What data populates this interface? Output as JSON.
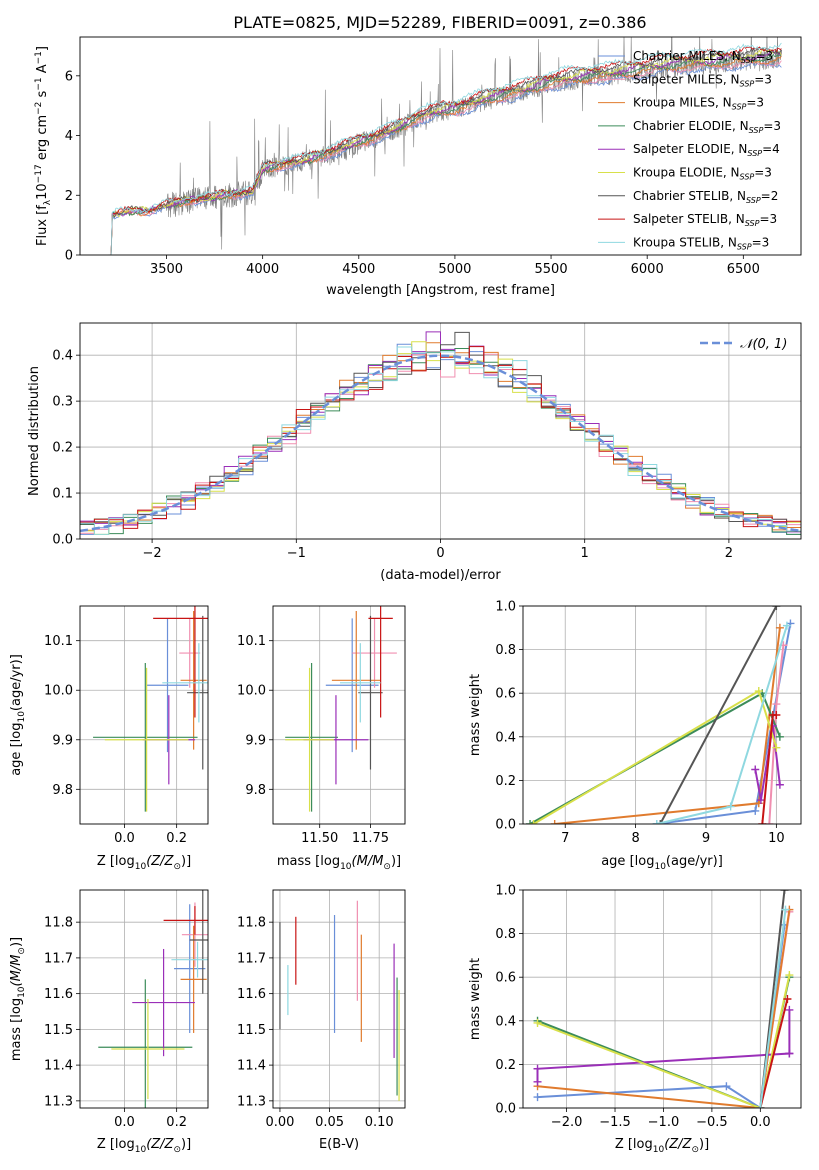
{
  "figure": {
    "title": "PLATE=0825, MJD=52289, FIBERID=0091, z=0.386"
  },
  "chart_data": [
    {
      "id": "spectrum",
      "type": "line",
      "xlabel": "wavelength [Angstrom, rest frame]",
      "ylabel": "Flux [f",
      "ylabel_parts": [
        "Flux [f",
        "λ",
        "10",
        "−17",
        " erg cm",
        "−2",
        " s",
        "−1",
        " A",
        "−1",
        "]"
      ],
      "xlim": [
        3050,
        6800
      ],
      "ylim": [
        0,
        7.3
      ],
      "xticks": [
        3500,
        4000,
        4500,
        5000,
        5500,
        6000,
        6500
      ],
      "yticks": [
        0,
        2,
        4,
        6
      ],
      "grid": false,
      "legend_position": "right",
      "legend": [
        {
          "name": "Chabrier MILES, N",
          "sub": "SSP",
          "suffix": "=3",
          "color": "#6a8fd8"
        },
        {
          "name": "Salpeter MILES, N",
          "sub": "SSP",
          "suffix": "=3",
          "color": "#f08fb0"
        },
        {
          "name": "Kroupa MILES, N",
          "sub": "SSP",
          "suffix": "=3",
          "color": "#e07b2e"
        },
        {
          "name": "Chabrier ELODIE, N",
          "sub": "SSP",
          "suffix": "=3",
          "color": "#3c8c5a"
        },
        {
          "name": "Salpeter ELODIE, N",
          "sub": "SSP",
          "suffix": "=4",
          "color": "#9a2fb8"
        },
        {
          "name": "Kroupa ELODIE, N",
          "sub": "SSP",
          "suffix": "=3",
          "color": "#d8e04a"
        },
        {
          "name": "Chabrier STELIB, N",
          "sub": "SSP",
          "suffix": "=2",
          "color": "#555555"
        },
        {
          "name": "Salpeter STELIB, N",
          "sub": "SSP",
          "suffix": "=3",
          "color": "#c81414"
        },
        {
          "name": "Kroupa STELIB, N",
          "sub": "SSP",
          "suffix": "=3",
          "color": "#8fd8e0"
        }
      ],
      "data_color": "#808080",
      "model_x": [
        3200,
        3210,
        3300,
        3400,
        3500,
        3600,
        3700,
        3800,
        3900,
        3950,
        4000,
        4100,
        4200,
        4300,
        4400,
        4500,
        4600,
        4700,
        4800,
        4900,
        5000,
        5100,
        5200,
        5300,
        5400,
        5500,
        5600,
        5700,
        5800,
        5900,
        6000,
        6100,
        6200,
        6300,
        6400,
        6500,
        6600,
        6700
      ],
      "model_y": [
        0,
        1.3,
        1.45,
        1.45,
        1.65,
        1.8,
        1.85,
        2.0,
        2.05,
        2.1,
        2.85,
        3.0,
        3.1,
        3.3,
        3.5,
        3.75,
        3.95,
        4.2,
        4.55,
        4.75,
        4.85,
        5.05,
        5.25,
        5.4,
        5.55,
        5.75,
        5.85,
        5.95,
        6.0,
        6.1,
        6.2,
        6.3,
        6.35,
        6.4,
        6.45,
        6.5,
        6.55,
        6.6
      ]
    },
    {
      "id": "residual-histogram",
      "type": "histogram",
      "xlabel": "(data-model)/error",
      "ylabel": "Normed distribution",
      "xlim": [
        -2.5,
        2.5
      ],
      "ylim": [
        0,
        0.47
      ],
      "xticks": [
        -2,
        -1,
        0,
        1,
        2
      ],
      "yticks": [
        0.0,
        0.1,
        0.2,
        0.3,
        0.4
      ],
      "grid": true,
      "legend_position": "top-right",
      "legend_label": "𝒩(0, 1)",
      "curve_color": "#6a8fd8",
      "bin_width": 0.1
    },
    {
      "id": "age-vs-Z",
      "type": "errorbar",
      "xlabel_parts": [
        "Z [log",
        "10",
        "(Z/Z",
        "⊙",
        ")]"
      ],
      "ylabel_parts": [
        "age  [log",
        "10",
        "(age/yr)]"
      ],
      "xlim": [
        -0.17,
        0.32
      ],
      "ylim": [
        9.73,
        10.17
      ],
      "xticks": [
        0.0,
        0.2
      ],
      "yticks": [
        9.8,
        9.9,
        10.0,
        10.1
      ],
      "grid": true,
      "points": [
        {
          "x": 0.165,
          "xerr": 0.08,
          "y": 10.01,
          "yerr": 0.135,
          "color": "#6a8fd8"
        },
        {
          "x": 0.25,
          "xerr": 0.04,
          "y": 10.075,
          "yerr": 0.07,
          "color": "#f08fb0"
        },
        {
          "x": 0.265,
          "xerr": 0.05,
          "y": 10.02,
          "yerr": 0.14,
          "color": "#e07b2e"
        },
        {
          "x": 0.08,
          "xerr": 0.2,
          "y": 9.905,
          "yerr": 0.15,
          "color": "#3c8c5a"
        },
        {
          "x": 0.17,
          "xerr": 0.1,
          "y": 9.9,
          "yerr": 0.09,
          "color": "#9a2fb8"
        },
        {
          "x": 0.085,
          "xerr": 0.16,
          "y": 9.9,
          "yerr": 0.145,
          "color": "#d8e04a"
        },
        {
          "x": 0.3,
          "xerr": 0.06,
          "y": 9.995,
          "yerr": 0.155,
          "color": "#555555"
        },
        {
          "x": 0.27,
          "xerr": 0.16,
          "y": 10.145,
          "yerr": 0.2,
          "color": "#c81414"
        },
        {
          "x": 0.285,
          "xerr": 0.14,
          "y": 10.015,
          "yerr": 0.08,
          "color": "#8fd8e0"
        }
      ]
    },
    {
      "id": "age-vs-mass",
      "type": "errorbar",
      "xlabel_parts": [
        "mass [log",
        "10",
        "(M/M",
        "⊙",
        ")]"
      ],
      "ylabel": "",
      "xlim": [
        11.27,
        11.92
      ],
      "ylim": [
        9.73,
        10.17
      ],
      "xticks": [
        11.5,
        11.75
      ],
      "yticks": [
        9.8,
        9.9,
        10.0,
        10.1
      ],
      "grid": true,
      "points": [
        {
          "x": 11.66,
          "xerr": 0.13,
          "y": 10.01,
          "yerr": 0.135,
          "color": "#6a8fd8"
        },
        {
          "x": 11.77,
          "xerr": 0.11,
          "y": 10.075,
          "yerr": 0.07,
          "color": "#f08fb0"
        },
        {
          "x": 11.68,
          "xerr": 0.12,
          "y": 10.02,
          "yerr": 0.14,
          "color": "#e07b2e"
        },
        {
          "x": 11.46,
          "xerr": 0.13,
          "y": 9.905,
          "yerr": 0.15,
          "color": "#3c8c5a"
        },
        {
          "x": 11.58,
          "xerr": 0.16,
          "y": 9.9,
          "yerr": 0.09,
          "color": "#9a2fb8"
        },
        {
          "x": 11.45,
          "xerr": 0.12,
          "y": 9.9,
          "yerr": 0.145,
          "color": "#d8e04a"
        },
        {
          "x": 11.75,
          "xerr": 0.06,
          "y": 9.995,
          "yerr": 0.155,
          "color": "#555555"
        },
        {
          "x": 11.8,
          "xerr": 0.06,
          "y": 10.145,
          "yerr": 0.2,
          "color": "#c81414"
        },
        {
          "x": 11.7,
          "xerr": 0.1,
          "y": 10.015,
          "yerr": 0.08,
          "color": "#8fd8e0"
        }
      ]
    },
    {
      "id": "weight-vs-age",
      "type": "line",
      "xlabel_parts": [
        "age  [log",
        "10",
        "(age/yr)]"
      ],
      "ylabel": "mass weight",
      "xlim": [
        6.4,
        10.35
      ],
      "ylim": [
        0,
        1.0
      ],
      "xticks": [
        7,
        8,
        9,
        10
      ],
      "yticks": [
        0.0,
        0.2,
        0.4,
        0.6,
        0.8,
        1.0
      ],
      "grid": true,
      "series": [
        {
          "x": [
            8.3,
            9.7,
            10.2
          ],
          "y": [
            0.0,
            0.06,
            0.92
          ],
          "color": "#6a8fd8"
        },
        {
          "x": [
            9.9,
            10.0,
            10.1
          ],
          "y": [
            0.0,
            0.55,
            0.82
          ],
          "color": "#f08fb0"
        },
        {
          "x": [
            6.85,
            9.75,
            10.05
          ],
          "y": [
            0.0,
            0.095,
            0.9
          ],
          "color": "#e07b2e"
        },
        {
          "x": [
            6.5,
            9.8,
            10.05
          ],
          "y": [
            0.0,
            0.6,
            0.4
          ],
          "color": "#3c8c5a"
        },
        {
          "x": [
            9.7,
            9.78,
            9.95,
            10.05
          ],
          "y": [
            0.25,
            0.11,
            0.45,
            0.18
          ],
          "color": "#9a2fb8"
        },
        {
          "x": [
            6.55,
            9.75,
            10.0
          ],
          "y": [
            0.0,
            0.61,
            0.35
          ],
          "color": "#d8e04a"
        },
        {
          "x": [
            8.35,
            10.0
          ],
          "y": [
            0.0,
            1.0
          ],
          "color": "#555555"
        },
        {
          "x": [
            9.8,
            9.95,
            10.0
          ],
          "y": [
            0.0,
            0.5,
            0.5
          ],
          "color": "#c81414"
        },
        {
          "x": [
            8.3,
            9.35,
            10.15
          ],
          "y": [
            0.0,
            0.08,
            0.91
          ],
          "color": "#8fd8e0"
        }
      ]
    },
    {
      "id": "mass-vs-Z",
      "type": "errorbar",
      "xlabel_parts": [
        "Z [log",
        "10",
        "(Z/Z",
        "⊙",
        ")]"
      ],
      "ylabel_parts": [
        "mass [log",
        "10",
        "(M/M",
        "⊙",
        ")]"
      ],
      "xlim": [
        -0.17,
        0.32
      ],
      "ylim": [
        11.28,
        11.89
      ],
      "xticks": [
        0.0,
        0.2
      ],
      "yticks": [
        11.3,
        11.4,
        11.5,
        11.6,
        11.7,
        11.8
      ],
      "grid": true,
      "points": [
        {
          "x": 0.25,
          "xerr": 0.06,
          "y": 11.67,
          "yerr": 0.18,
          "color": "#6a8fd8"
        },
        {
          "x": 0.27,
          "xerr": 0.05,
          "y": 11.765,
          "yerr": 0.09,
          "color": "#f08fb0"
        },
        {
          "x": 0.265,
          "xerr": 0.05,
          "y": 11.64,
          "yerr": 0.15,
          "color": "#e07b2e"
        },
        {
          "x": 0.08,
          "xerr": 0.18,
          "y": 11.45,
          "yerr": 0.19,
          "color": "#3c8c5a"
        },
        {
          "x": 0.15,
          "xerr": 0.12,
          "y": 11.575,
          "yerr": 0.15,
          "color": "#9a2fb8"
        },
        {
          "x": 0.09,
          "xerr": 0.14,
          "y": 11.445,
          "yerr": 0.14,
          "color": "#d8e04a"
        },
        {
          "x": 0.3,
          "xerr": 0.05,
          "y": 11.75,
          "yerr": 0.15,
          "color": "#555555"
        },
        {
          "x": 0.27,
          "xerr": 0.12,
          "y": 11.805,
          "yerr": 0.04,
          "color": "#c81414"
        },
        {
          "x": 0.28,
          "xerr": 0.1,
          "y": 11.695,
          "yerr": 0.05,
          "color": "#8fd8e0"
        }
      ]
    },
    {
      "id": "mass-vs-EBV",
      "type": "errorbar",
      "xlabel": "E(B-V)",
      "ylabel": "",
      "xlim": [
        -0.007,
        0.126
      ],
      "ylim": [
        11.28,
        11.89
      ],
      "xticks": [
        0.0,
        0.05,
        0.1
      ],
      "yticks": [
        11.3,
        11.4,
        11.5,
        11.6,
        11.7,
        11.8
      ],
      "grid": true,
      "points": [
        {
          "x": 0.055,
          "xerr": 0.0,
          "y": 11.655,
          "yerr": 0.165,
          "color": "#6a8fd8"
        },
        {
          "x": 0.078,
          "xerr": 0.0,
          "y": 11.72,
          "yerr": 0.14,
          "color": "#f08fb0"
        },
        {
          "x": 0.082,
          "xerr": 0.0,
          "y": 11.615,
          "yerr": 0.15,
          "color": "#e07b2e"
        },
        {
          "x": 0.118,
          "xerr": 0.0,
          "y": 11.48,
          "yerr": 0.165,
          "color": "#3c8c5a"
        },
        {
          "x": 0.115,
          "xerr": 0.0,
          "y": 11.58,
          "yerr": 0.16,
          "color": "#9a2fb8"
        },
        {
          "x": 0.12,
          "xerr": 0.0,
          "y": 11.455,
          "yerr": 0.155,
          "color": "#d8e04a"
        },
        {
          "x": 0.0,
          "xerr": 0.0,
          "y": 11.65,
          "yerr": 0.15,
          "color": "#555555"
        },
        {
          "x": 0.016,
          "xerr": 0.0,
          "y": 11.72,
          "yerr": 0.095,
          "color": "#c81414"
        },
        {
          "x": 0.008,
          "xerr": 0.0,
          "y": 11.61,
          "yerr": 0.07,
          "color": "#8fd8e0"
        }
      ]
    },
    {
      "id": "weight-vs-Z",
      "type": "line",
      "xlabel_parts": [
        "Z [log",
        "10",
        "(Z/Z",
        "⊙",
        ")]"
      ],
      "ylabel": "mass weight",
      "xlim": [
        -2.45,
        0.42
      ],
      "ylim": [
        0,
        1.0
      ],
      "xticks": [
        -2.0,
        -1.5,
        -1.0,
        -0.5,
        0.0
      ],
      "yticks": [
        0.0,
        0.2,
        0.4,
        0.6,
        0.8,
        1.0
      ],
      "grid": true,
      "series": [
        {
          "x": [
            -2.3,
            -0.35,
            0.0,
            0.25
          ],
          "y": [
            0.05,
            0.1,
            0.0,
            0.84
          ],
          "color": "#6a8fd8"
        },
        {
          "x": [
            0.0,
            0.3
          ],
          "y": [
            0.0,
            0.9
          ],
          "color": "#f08fb0"
        },
        {
          "x": [
            -2.3,
            0.0,
            0.3
          ],
          "y": [
            0.1,
            0.0,
            0.91
          ],
          "color": "#e07b2e"
        },
        {
          "x": [
            -2.3,
            0.0,
            0.3
          ],
          "y": [
            0.4,
            0.0,
            0.6
          ],
          "color": "#3c8c5a"
        },
        {
          "x": [
            -2.3,
            -2.3,
            0.3,
            0.3,
            0.3
          ],
          "y": [
            0.12,
            0.18,
            0.25,
            0.25,
            0.45
          ],
          "color": "#9a2fb8"
        },
        {
          "x": [
            -2.3,
            0.0,
            0.3
          ],
          "y": [
            0.39,
            0.0,
            0.61
          ],
          "color": "#d8e04a"
        },
        {
          "x": [
            0.0,
            0.25
          ],
          "y": [
            0.0,
            1.0
          ],
          "color": "#555555"
        },
        {
          "x": [
            0.0,
            0.28
          ],
          "y": [
            0.0,
            0.5
          ],
          "color": "#c81414"
        },
        {
          "x": [
            0.0,
            0.26
          ],
          "y": [
            0.0,
            0.91
          ],
          "color": "#8fd8e0"
        }
      ]
    }
  ]
}
